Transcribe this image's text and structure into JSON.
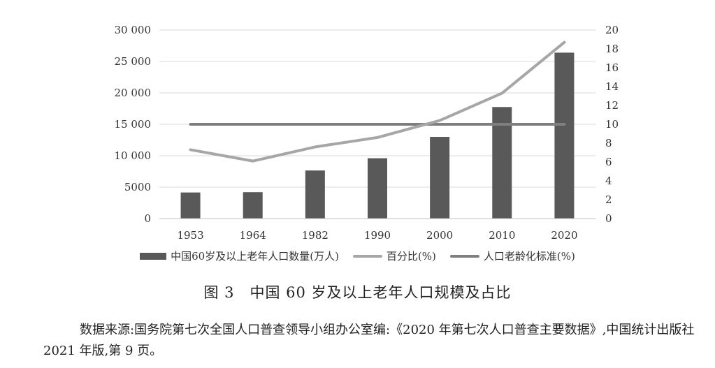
{
  "chart_data": {
    "type": "bar+line",
    "categories": [
      "1953",
      "1964",
      "1982",
      "1990",
      "2000",
      "2010",
      "2020"
    ],
    "series": [
      {
        "name": "中国60岁及以上老年人口数量(万人)",
        "type": "bar",
        "axis": "left",
        "values": [
          4150,
          4200,
          7650,
          9600,
          13000,
          17750,
          26400
        ]
      },
      {
        "name": "百分比(%)",
        "type": "line",
        "axis": "right",
        "values": [
          7.3,
          6.1,
          7.6,
          8.6,
          10.4,
          13.3,
          18.7
        ]
      },
      {
        "name": "人口老龄化标准(%)",
        "type": "line",
        "axis": "right",
        "values": [
          10,
          10,
          10,
          10,
          10,
          10,
          10
        ]
      }
    ],
    "left_axis": {
      "ylim": [
        0,
        30000
      ],
      "ticks": [
        0,
        5000,
        10000,
        15000,
        20000,
        25000,
        30000
      ],
      "tick_labels": [
        "0",
        "5000",
        "10 000",
        "15 000",
        "20 000",
        "25 000",
        "30 000"
      ]
    },
    "right_axis": {
      "ylim": [
        0,
        20
      ],
      "ticks": [
        0,
        2,
        4,
        6,
        8,
        10,
        12,
        14,
        16,
        18,
        20
      ],
      "tick_labels": [
        "0",
        "2",
        "4",
        "6",
        "8",
        "10",
        "12",
        "14",
        "16",
        "18",
        "20"
      ]
    },
    "grid": true,
    "legend_position": "bottom",
    "colors": {
      "bar": "#595959",
      "percent_line": "#a6a6a6",
      "standard_line": "#7f7f7f",
      "grid": "#d9d9d9"
    }
  },
  "legend": {
    "bar_label": "中国60岁及以上老年人口数量(万人)",
    "percent_label": "百分比(%)",
    "standard_label": "人口老龄化标准(%)"
  },
  "caption": "图 3　中国 60 岁及以上老年人口规模及占比",
  "source_text": "数据来源:国务院第七次全国人口普查领导小组办公室编:《2020 年第七次人口普查主要数据》,中国统计出版社 2021 年版,第 9 页。"
}
